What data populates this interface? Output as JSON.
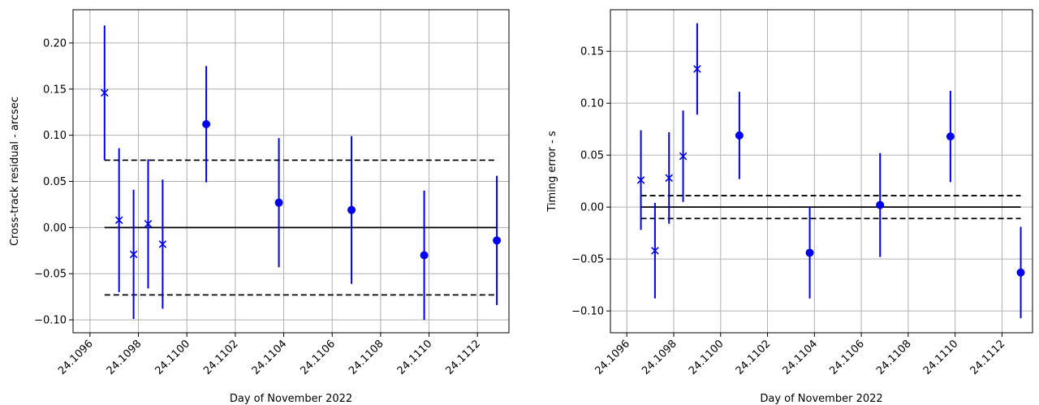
{
  "colors": {
    "marker": "#0000ee",
    "grid": "#b0b0b0",
    "reference": "#000000"
  },
  "chart_data": [
    {
      "type": "scatter",
      "xlabel": "Day of November 2022",
      "ylabel": "Cross-track residual - arcsec",
      "xlim": [
        24.10953,
        24.11133
      ],
      "ylim": [
        -0.114,
        0.236
      ],
      "xticks": [
        24.1096,
        24.1098,
        24.11,
        24.1102,
        24.1104,
        24.1106,
        24.1108,
        24.111,
        24.1112
      ],
      "xtick_labels": [
        "24.1096",
        "24.1098",
        "24.1100",
        "24.1102",
        "24.1104",
        "24.1106",
        "24.1108",
        "24.1110",
        "24.1112"
      ],
      "yticks": [
        -0.1,
        -0.05,
        0,
        0.05,
        0.1,
        0.15,
        0.2
      ],
      "ytick_labels": [
        "−0.10",
        "−0.05",
        "0.00",
        "0.05",
        "0.10",
        "0.15",
        "0.20"
      ],
      "grid": true,
      "series": [
        {
          "marker": "x",
          "x": [
            24.10966,
            24.10972,
            24.10978,
            24.10984,
            24.1099
          ],
          "y": [
            0.146,
            0.008,
            -0.029,
            0.004,
            -0.018
          ],
          "yerr": [
            0.073,
            0.078,
            0.07,
            0.07,
            0.07
          ]
        },
        {
          "marker": "o",
          "x": [
            24.11008,
            24.11038,
            24.11068,
            24.11098,
            24.11128
          ],
          "y": [
            0.112,
            0.027,
            0.019,
            -0.03,
            -0.014
          ],
          "yerr": [
            0.063,
            0.07,
            0.08,
            0.07,
            0.07
          ]
        }
      ],
      "reference_lines": {
        "x_range": [
          24.10966,
          24.11128
        ],
        "solid_y": 0,
        "dashed_y": [
          0.073,
          -0.073
        ],
        "dashed_start_connector": true
      }
    },
    {
      "type": "scatter",
      "xlabel": "Day of November 2022",
      "ylabel": "Timing error - s",
      "xlim": [
        24.10953,
        24.11133
      ],
      "ylim": [
        -0.121,
        0.19
      ],
      "xticks": [
        24.1096,
        24.1098,
        24.11,
        24.1102,
        24.1104,
        24.1106,
        24.1108,
        24.111,
        24.1112
      ],
      "xtick_labels": [
        "24.1096",
        "24.1098",
        "24.1100",
        "24.1102",
        "24.1104",
        "24.1106",
        "24.1108",
        "24.1110",
        "24.1112"
      ],
      "yticks": [
        -0.1,
        -0.05,
        0,
        0.05,
        0.1,
        0.15
      ],
      "ytick_labels": [
        "−0.10",
        "−0.05",
        "0.00",
        "0.05",
        "0.10",
        "0.15"
      ],
      "grid": true,
      "series": [
        {
          "marker": "x",
          "x": [
            24.10966,
            24.10972,
            24.10978,
            24.10984,
            24.1099
          ],
          "y": [
            0.026,
            -0.042,
            0.028,
            0.049,
            0.133
          ],
          "yerr": [
            0.048,
            0.046,
            0.044,
            0.044,
            0.044
          ]
        },
        {
          "marker": "o",
          "x": [
            24.11008,
            24.11038,
            24.11068,
            24.11098,
            24.11128
          ],
          "y": [
            0.069,
            -0.044,
            0.002,
            0.068,
            -0.063
          ],
          "yerr": [
            0.042,
            0.044,
            0.05,
            0.044,
            0.044
          ]
        }
      ],
      "reference_lines": {
        "x_range": [
          24.10966,
          24.11128
        ],
        "solid_y": 0,
        "dashed_y": [
          0.011,
          -0.011
        ],
        "dashed_start_connector": false
      }
    }
  ]
}
